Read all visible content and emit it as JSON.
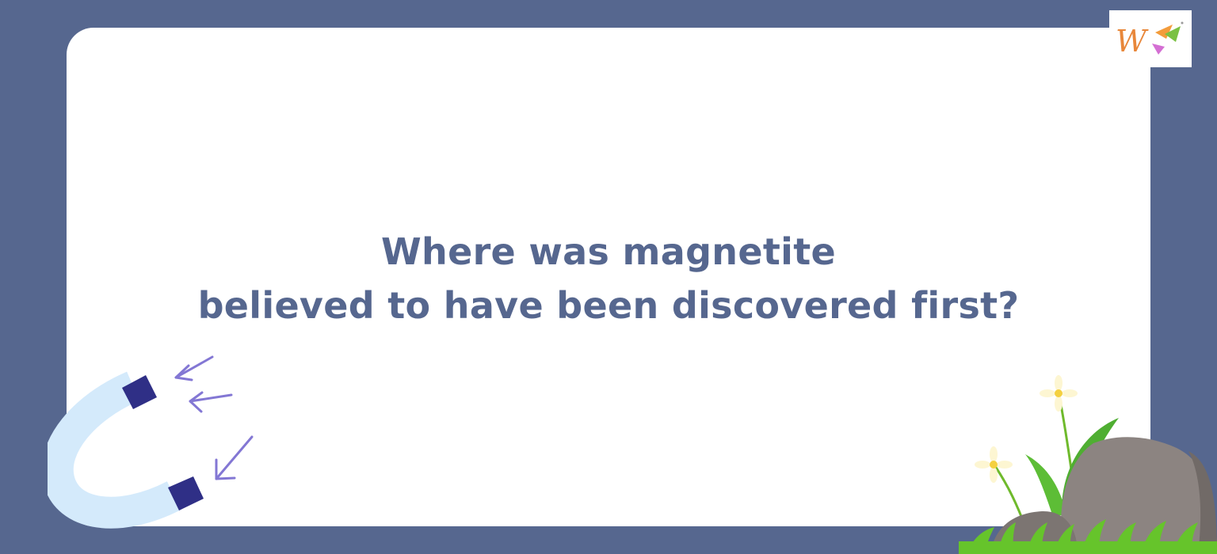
{
  "question": {
    "line1": "Where was magnetite",
    "line2": "believed to have been discovered first?"
  },
  "logo": {
    "letter": "W"
  },
  "colors": {
    "background": "#56678f",
    "card": "#ffffff",
    "text": "#56678f",
    "magnet_body": "#d4eafb",
    "magnet_poles": "#2f2f86",
    "arrows": "#8377d4",
    "rock": "#8c8481",
    "grass": "#66c42b",
    "flower_petal": "#fdf6d2",
    "flower_center": "#f4d03f",
    "logo_letter": "#e8873a"
  },
  "icons": [
    "horseshoe-magnet-icon",
    "attraction-arrows-icon",
    "rock-icon",
    "grass-icon",
    "daisy-flower-icon",
    "brand-logo-icon"
  ]
}
